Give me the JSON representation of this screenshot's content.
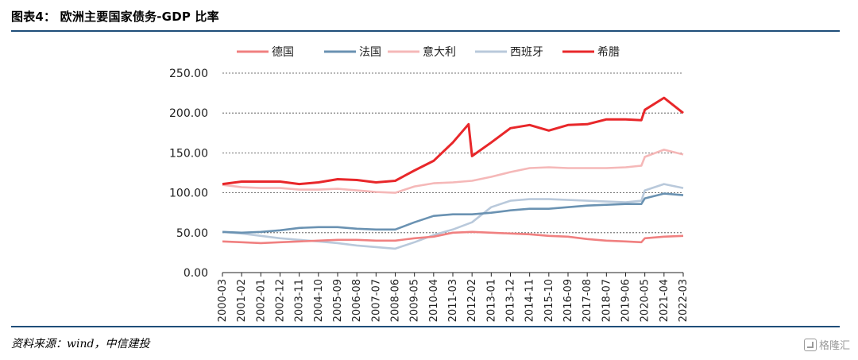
{
  "header": {
    "title": "图表4： 欧洲主要国家债务-GDP 比率"
  },
  "footer": {
    "source": "资料来源：wind，中信建投",
    "watermark": "格隆汇"
  },
  "chart_data": {
    "type": "line",
    "title": "",
    "xlabel": "",
    "ylabel": "",
    "ylim": [
      0,
      250
    ],
    "yticks": [
      0,
      50,
      100,
      150,
      200,
      250
    ],
    "ytick_labels": [
      "0.00",
      "50.00",
      "100.00",
      "150.00",
      "200.00",
      "250.00"
    ],
    "grid": "horizontal dashed",
    "legend_position": "top",
    "x_labels": [
      "2000-03",
      "2001-02",
      "2002-01",
      "2002-12",
      "2003-11",
      "2004-10",
      "2005-09",
      "2006-08",
      "2007-07",
      "2008-06",
      "2009-05",
      "2010-04",
      "2011-03",
      "2012-02",
      "2013-01",
      "2013-12",
      "2014-11",
      "2015-10",
      "2016-09",
      "2017-08",
      "2018-07",
      "2019-06",
      "2020-05",
      "2021-04",
      "2022-03"
    ],
    "x_start": "2000-03",
    "x_end": "2022-03",
    "series": [
      {
        "name": "德国",
        "color": "#f08080",
        "points": [
          [
            "2000-03",
            39
          ],
          [
            "2001-02",
            38
          ],
          [
            "2002-01",
            37
          ],
          [
            "2002-12",
            38
          ],
          [
            "2003-11",
            39
          ],
          [
            "2004-10",
            40
          ],
          [
            "2005-09",
            41
          ],
          [
            "2006-08",
            41
          ],
          [
            "2007-07",
            40
          ],
          [
            "2008-06",
            40
          ],
          [
            "2009-05",
            43
          ],
          [
            "2010-04",
            45
          ],
          [
            "2011-03",
            50
          ],
          [
            "2012-02",
            51
          ],
          [
            "2013-01",
            50
          ],
          [
            "2013-12",
            49
          ],
          [
            "2014-11",
            48
          ],
          [
            "2015-10",
            46
          ],
          [
            "2016-09",
            45
          ],
          [
            "2017-08",
            42
          ],
          [
            "2018-07",
            40
          ],
          [
            "2019-06",
            39
          ],
          [
            "2020-03",
            38
          ],
          [
            "2020-05",
            43
          ],
          [
            "2021-04",
            45
          ],
          [
            "2022-03",
            46
          ]
        ]
      },
      {
        "name": "法国",
        "color": "#6a92b2",
        "points": [
          [
            "2000-03",
            51
          ],
          [
            "2001-02",
            50
          ],
          [
            "2002-01",
            51
          ],
          [
            "2002-12",
            53
          ],
          [
            "2003-11",
            56
          ],
          [
            "2004-10",
            57
          ],
          [
            "2005-09",
            57
          ],
          [
            "2006-08",
            55
          ],
          [
            "2007-07",
            54
          ],
          [
            "2008-06",
            54
          ],
          [
            "2009-05",
            63
          ],
          [
            "2010-04",
            71
          ],
          [
            "2011-03",
            73
          ],
          [
            "2012-02",
            73
          ],
          [
            "2013-01",
            75
          ],
          [
            "2013-12",
            78
          ],
          [
            "2014-11",
            80
          ],
          [
            "2015-10",
            80
          ],
          [
            "2016-09",
            82
          ],
          [
            "2017-08",
            84
          ],
          [
            "2018-07",
            85
          ],
          [
            "2019-06",
            86
          ],
          [
            "2020-03",
            86
          ],
          [
            "2020-05",
            93
          ],
          [
            "2021-04",
            99
          ],
          [
            "2022-03",
            97
          ]
        ]
      },
      {
        "name": "意大利",
        "color": "#f5b8b8",
        "points": [
          [
            "2000-03",
            110
          ],
          [
            "2001-02",
            107
          ],
          [
            "2002-01",
            106
          ],
          [
            "2002-12",
            106
          ],
          [
            "2003-11",
            104
          ],
          [
            "2004-10",
            104
          ],
          [
            "2005-09",
            105
          ],
          [
            "2006-08",
            103
          ],
          [
            "2007-07",
            101
          ],
          [
            "2008-06",
            100
          ],
          [
            "2009-05",
            108
          ],
          [
            "2010-04",
            112
          ],
          [
            "2011-03",
            113
          ],
          [
            "2012-02",
            115
          ],
          [
            "2013-01",
            120
          ],
          [
            "2013-12",
            126
          ],
          [
            "2014-11",
            131
          ],
          [
            "2015-10",
            132
          ],
          [
            "2016-09",
            131
          ],
          [
            "2017-08",
            131
          ],
          [
            "2018-07",
            131
          ],
          [
            "2019-06",
            132
          ],
          [
            "2020-03",
            134
          ],
          [
            "2020-05",
            145
          ],
          [
            "2021-04",
            154
          ],
          [
            "2022-03",
            148
          ]
        ]
      },
      {
        "name": "西班牙",
        "color": "#b9c9db",
        "points": [
          [
            "2000-03",
            51
          ],
          [
            "2001-02",
            49
          ],
          [
            "2002-01",
            46
          ],
          [
            "2002-12",
            43
          ],
          [
            "2003-11",
            41
          ],
          [
            "2004-10",
            39
          ],
          [
            "2005-09",
            37
          ],
          [
            "2006-08",
            34
          ],
          [
            "2007-07",
            32
          ],
          [
            "2008-06",
            30
          ],
          [
            "2009-05",
            38
          ],
          [
            "2010-04",
            47
          ],
          [
            "2011-03",
            54
          ],
          [
            "2012-02",
            63
          ],
          [
            "2013-01",
            82
          ],
          [
            "2013-12",
            90
          ],
          [
            "2014-11",
            92
          ],
          [
            "2015-10",
            92
          ],
          [
            "2016-09",
            91
          ],
          [
            "2017-08",
            90
          ],
          [
            "2018-07",
            89
          ],
          [
            "2019-06",
            88
          ],
          [
            "2020-03",
            90
          ],
          [
            "2020-05",
            103
          ],
          [
            "2021-04",
            111
          ],
          [
            "2022-03",
            106
          ]
        ]
      },
      {
        "name": "希腊",
        "color": "#e8272a",
        "points": [
          [
            "2000-03",
            111
          ],
          [
            "2001-02",
            114
          ],
          [
            "2002-01",
            114
          ],
          [
            "2002-12",
            114
          ],
          [
            "2003-11",
            111
          ],
          [
            "2004-10",
            113
          ],
          [
            "2005-09",
            117
          ],
          [
            "2006-08",
            116
          ],
          [
            "2007-07",
            113
          ],
          [
            "2008-06",
            115
          ],
          [
            "2009-05",
            128
          ],
          [
            "2010-04",
            140
          ],
          [
            "2011-03",
            163
          ],
          [
            "2011-12",
            186
          ],
          [
            "2012-02",
            146
          ],
          [
            "2013-01",
            163
          ],
          [
            "2013-12",
            181
          ],
          [
            "2014-11",
            185
          ],
          [
            "2015-10",
            178
          ],
          [
            "2016-09",
            185
          ],
          [
            "2017-08",
            186
          ],
          [
            "2018-07",
            192
          ],
          [
            "2019-06",
            192
          ],
          [
            "2020-03",
            191
          ],
          [
            "2020-05",
            204
          ],
          [
            "2021-04",
            219
          ],
          [
            "2022-03",
            200
          ]
        ]
      }
    ]
  }
}
